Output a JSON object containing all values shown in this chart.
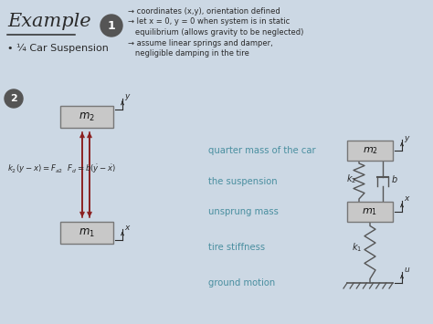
{
  "bg_color": "#ccd8e4",
  "text_color": "#2a2a2a",
  "teal_color": "#4a8fa0",
  "arrow_color": "#8b2020",
  "box_face": "#c8c8c8",
  "box_edge": "#777777",
  "mech_color": "#555555",
  "circle_color": "#555555",
  "title": "Example",
  "bullet": "¼ Car Suspension",
  "text_lines": [
    "→ coordinates (x,y), orientation defined",
    "→ let x = 0, y = 0 when system is in static",
    "   equilibrium (allows gravity to be neglected)",
    "→ assume linear springs and damper,",
    "   negligible damping in the tire"
  ],
  "row_labels": [
    "quarter mass of the car",
    "the suspension",
    "unsprung mass",
    "tire stiffness",
    "ground motion"
  ]
}
